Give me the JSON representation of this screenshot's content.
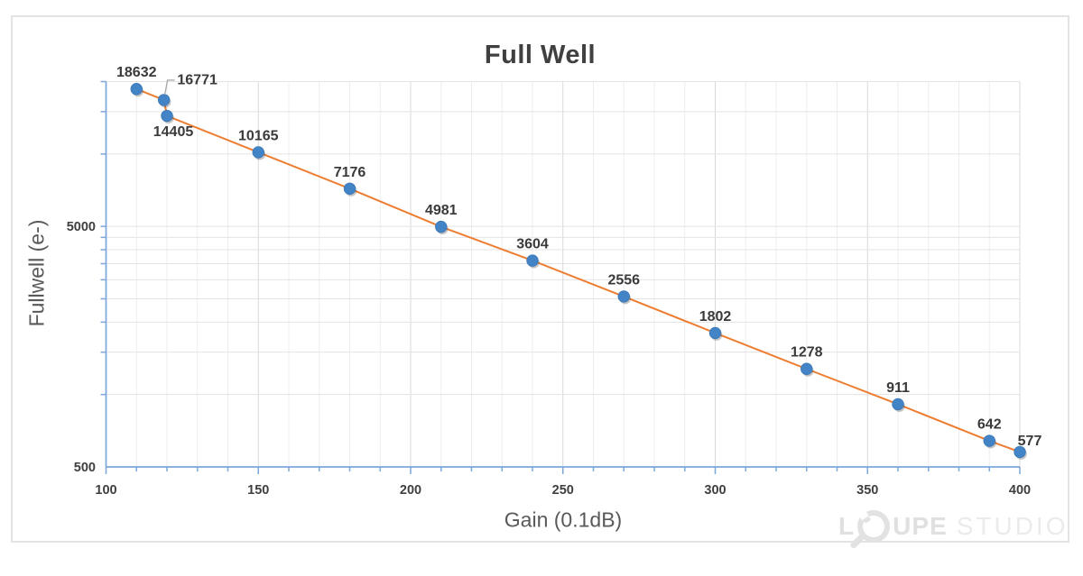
{
  "chart_data": {
    "type": "line",
    "title": "Full Well",
    "xlabel": "Gain (0.1dB)",
    "ylabel": "Fullwell (e-)",
    "x": [
      110,
      119,
      120,
      150,
      180,
      210,
      240,
      270,
      300,
      330,
      360,
      390,
      400
    ],
    "series": [
      {
        "name": "Full Well",
        "values": [
          18632,
          16771,
          14405,
          10165,
          7176,
          4981,
          3604,
          2556,
          1802,
          1278,
          911,
          642,
          577
        ]
      }
    ],
    "point_labels": [
      "18632",
      "16771",
      "14405",
      "10165",
      "7176",
      "4981",
      "3604",
      "2556",
      "1802",
      "1278",
      "911",
      "642",
      "577"
    ],
    "label_positions": [
      "above",
      "callout-right",
      "below",
      "above",
      "above",
      "above",
      "above",
      "above",
      "above",
      "above",
      "above",
      "above",
      "above-right"
    ],
    "x_axis": {
      "min": 100,
      "max": 400,
      "major": 50,
      "minor": 10,
      "tick_labels": [
        "100",
        "150",
        "200",
        "250",
        "300",
        "350",
        "400"
      ]
    },
    "y_axis": {
      "scale": "log",
      "min": 500,
      "max": 20000,
      "tick_labels": [
        {
          "value": 5000,
          "label": "5000"
        },
        {
          "value": 500,
          "label": "500"
        }
      ],
      "gridline_values": [
        1000,
        1500,
        2000,
        2500,
        3000,
        3500,
        4000,
        4500,
        5000,
        10000,
        15000,
        20000
      ]
    },
    "grid": true,
    "legend": "none",
    "colors": {
      "line": "#ED7D31",
      "marker": "#4384C7",
      "marker_edge": "#3B77B5",
      "marker_shadow": "rgba(90,90,90,0.35)",
      "axis": "#7BA7DB",
      "grid_minor": "#EDEDED",
      "grid_major": "#D9D9D9",
      "grid_horizontal": "#E3E3E3",
      "tick_label": "#3F3F3F",
      "data_label": "#3A3A3A",
      "leader": "#A6A6A6"
    }
  },
  "watermark": {
    "left": "L",
    "mid": "UPE",
    "right": "STUDIO"
  }
}
